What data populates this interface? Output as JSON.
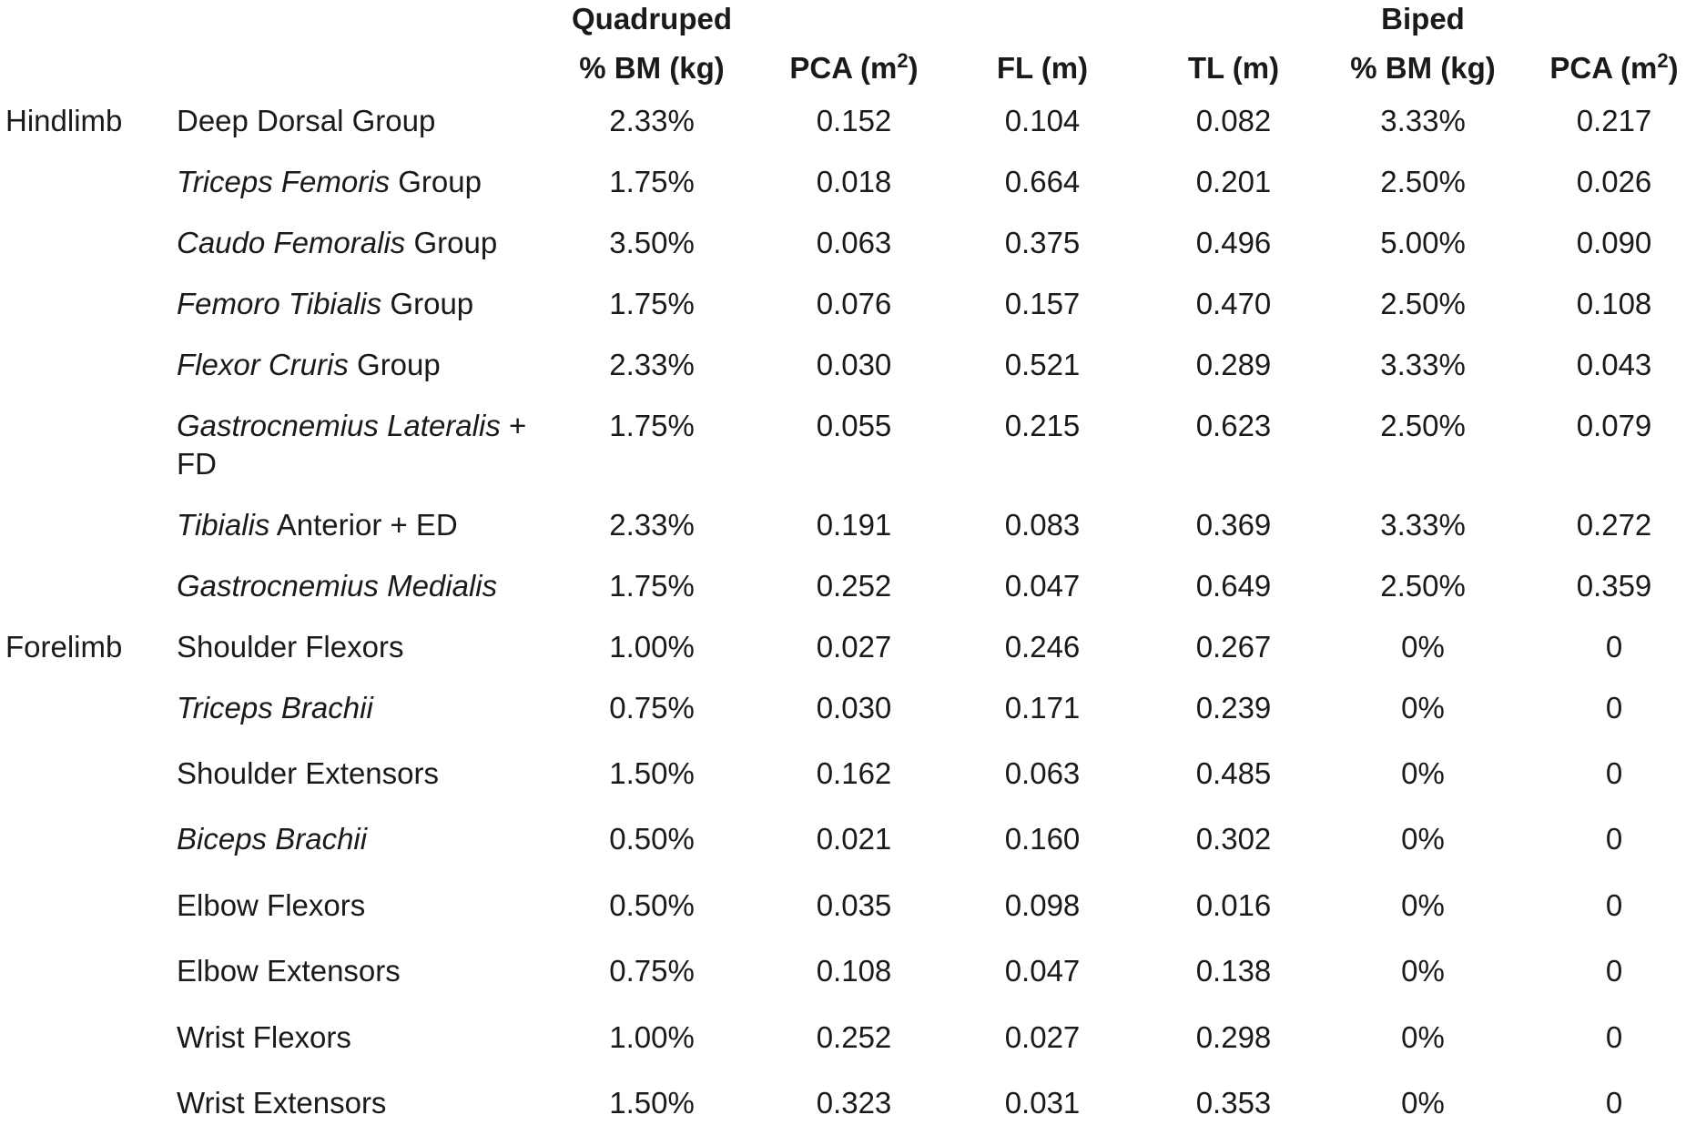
{
  "groups": [
    {
      "label": "Quadruped"
    },
    {
      "label": "Biped"
    }
  ],
  "headers": [
    {
      "text": "% BM (kg)",
      "sup": ""
    },
    {
      "text": "PCA (m",
      "sup": "2",
      "close": ")"
    },
    {
      "text": "FL (m)",
      "sup": ""
    },
    {
      "text": "TL (m)",
      "sup": ""
    },
    {
      "text": "% BM (kg)",
      "sup": ""
    },
    {
      "text": "PCA (m",
      "sup": "2",
      "close": ")"
    }
  ],
  "rows": [
    {
      "region": "Hindlimb",
      "parts": [
        {
          "t": "Deep Dorsal Group",
          "i": false
        }
      ],
      "values": [
        "2.33%",
        "0.152",
        "0.104",
        "0.082",
        "3.33%",
        "0.217"
      ]
    },
    {
      "region": "",
      "parts": [
        {
          "t": "Triceps Femoris",
          "i": true
        },
        {
          "t": " Group",
          "i": false
        }
      ],
      "values": [
        "1.75%",
        "0.018",
        "0.664",
        "0.201",
        "2.50%",
        "0.026"
      ]
    },
    {
      "region": "",
      "parts": [
        {
          "t": "Caudo Femoralis",
          "i": true
        },
        {
          "t": " Group",
          "i": false
        }
      ],
      "values": [
        "3.50%",
        "0.063",
        "0.375",
        "0.496",
        "5.00%",
        "0.090"
      ]
    },
    {
      "region": "",
      "parts": [
        {
          "t": "Femoro Tibialis",
          "i": true
        },
        {
          "t": " Group",
          "i": false
        }
      ],
      "values": [
        "1.75%",
        "0.076",
        "0.157",
        "0.470",
        "2.50%",
        "0.108"
      ]
    },
    {
      "region": "",
      "parts": [
        {
          "t": "Flexor Cruris",
          "i": true
        },
        {
          "t": " Group",
          "i": false
        }
      ],
      "values": [
        "2.33%",
        "0.030",
        "0.521",
        "0.289",
        "3.33%",
        "0.043"
      ]
    },
    {
      "region": "",
      "parts": [
        {
          "t": "Gastrocnemius Lateralis",
          "i": true
        },
        {
          "t": " + FD",
          "i": false
        }
      ],
      "values": [
        "1.75%",
        "0.055",
        "0.215",
        "0.623",
        "2.50%",
        "0.079"
      ]
    },
    {
      "region": "",
      "parts": [
        {
          "t": "Tibialis",
          "i": true
        },
        {
          "t": " Anterior + ED",
          "i": false
        }
      ],
      "values": [
        "2.33%",
        "0.191",
        "0.083",
        "0.369",
        "3.33%",
        "0.272"
      ]
    },
    {
      "region": "",
      "parts": [
        {
          "t": "Gastrocnemius Medialis",
          "i": true
        }
      ],
      "values": [
        "1.75%",
        "0.252",
        "0.047",
        "0.649",
        "2.50%",
        "0.359"
      ]
    },
    {
      "region": "Forelimb",
      "parts": [
        {
          "t": "Shoulder Flexors",
          "i": false
        }
      ],
      "values": [
        "1.00%",
        "0.027",
        "0.246",
        "0.267",
        "0%",
        "0"
      ]
    },
    {
      "region": "",
      "parts": [
        {
          "t": "Triceps Brachii",
          "i": true
        }
      ],
      "values": [
        "0.75%",
        "0.030",
        "0.171",
        "0.239",
        "0%",
        "0"
      ]
    },
    {
      "region": "",
      "parts": [
        {
          "t": "Shoulder Extensors",
          "i": false
        }
      ],
      "values": [
        "1.50%",
        "0.162",
        "0.063",
        "0.485",
        "0%",
        "0"
      ]
    },
    {
      "region": "",
      "parts": [
        {
          "t": "Biceps Brachii",
          "i": true
        }
      ],
      "values": [
        "0.50%",
        "0.021",
        "0.160",
        "0.302",
        "0%",
        "0"
      ]
    },
    {
      "region": "",
      "parts": [
        {
          "t": "Elbow Flexors",
          "i": false
        }
      ],
      "values": [
        "0.50%",
        "0.035",
        "0.098",
        "0.016",
        "0%",
        "0"
      ]
    },
    {
      "region": "",
      "parts": [
        {
          "t": "Elbow Extensors",
          "i": false
        }
      ],
      "values": [
        "0.75%",
        "0.108",
        "0.047",
        "0.138",
        "0%",
        "0"
      ]
    },
    {
      "region": "",
      "parts": [
        {
          "t": "Wrist Flexors",
          "i": false
        }
      ],
      "values": [
        "1.00%",
        "0.252",
        "0.027",
        "0.298",
        "0%",
        "0"
      ]
    },
    {
      "region": "",
      "parts": [
        {
          "t": "Wrist Extensors",
          "i": false
        }
      ],
      "values": [
        "1.50%",
        "0.323",
        "0.031",
        "0.353",
        "0%",
        "0"
      ]
    }
  ]
}
